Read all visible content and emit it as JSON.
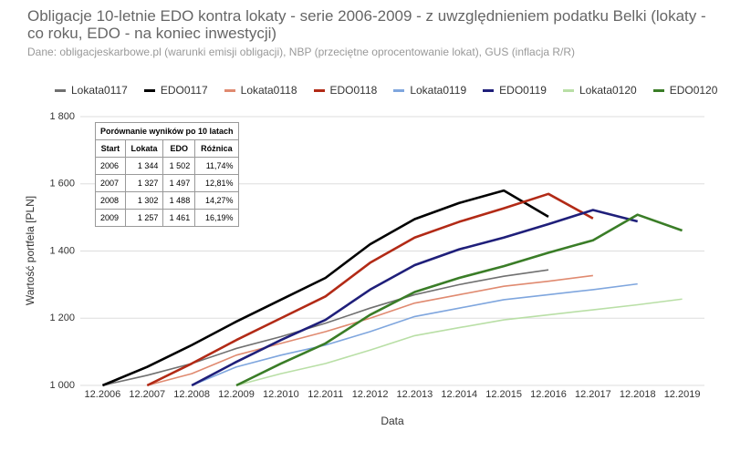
{
  "chart_data": {
    "type": "line",
    "title": "Obligacje 10-letnie EDO kontra lokaty - serie 2006-2009 - z uwzględnieniem podatku Belki (lokaty - co roku, EDO - na koniec inwestycji)",
    "subtitle": "Dane: obligacjeskarbowe.pl (warunki emisji obligacji), NBP (przeciętne oprocentowanie lokat), GUS (inflacja R/R)",
    "x_label": "Data",
    "y_label": "Wartość portfela [PLN]",
    "categories": [
      "12.2006",
      "12.2007",
      "12.2008",
      "12.2009",
      "12.2010",
      "12.2011",
      "12.2012",
      "12.2013",
      "12.2014",
      "12.2015",
      "12.2016",
      "12.2017",
      "12.2018",
      "12.2019"
    ],
    "ylim": [
      1000,
      1800
    ],
    "yticks": [
      {
        "value": 1000,
        "label": "1 000"
      },
      {
        "value": 1200,
        "label": "1 200"
      },
      {
        "value": 1400,
        "label": "1 400"
      },
      {
        "value": 1600,
        "label": "1 600"
      },
      {
        "value": 1800,
        "label": "1 800"
      }
    ],
    "grid": true,
    "series": [
      {
        "name": "Lokata0117",
        "color": "#707070",
        "values": [
          1000,
          1030,
          1065,
          1110,
          1145,
          1185,
          1230,
          1270,
          1300,
          1325,
          1344,
          null,
          null,
          null
        ]
      },
      {
        "name": "EDO0117",
        "color": "#000000",
        "values": [
          1000,
          1055,
          1120,
          1190,
          1255,
          1320,
          1420,
          1495,
          1543,
          1580,
          1502,
          null,
          null,
          null
        ]
      },
      {
        "name": "Lokata0118",
        "color": "#e08a70",
        "values": [
          null,
          1000,
          1035,
          1090,
          1125,
          1160,
          1200,
          1245,
          1270,
          1295,
          1310,
          1327,
          null,
          null
        ]
      },
      {
        "name": "EDO0118",
        "color": "#b22a16",
        "values": [
          null,
          1000,
          1065,
          1135,
          1200,
          1265,
          1365,
          1440,
          1487,
          1527,
          1570,
          1497,
          null,
          null
        ]
      },
      {
        "name": "Lokata0119",
        "color": "#7fa6de",
        "values": [
          null,
          null,
          1000,
          1055,
          1090,
          1120,
          1160,
          1205,
          1230,
          1255,
          1270,
          1285,
          1302,
          null
        ]
      },
      {
        "name": "EDO0119",
        "color": "#1f1f7a",
        "values": [
          null,
          null,
          1000,
          1070,
          1135,
          1195,
          1285,
          1358,
          1405,
          1440,
          1480,
          1522,
          1488,
          null
        ]
      },
      {
        "name": "Lokata0120",
        "color": "#b9dfa6",
        "values": [
          null,
          null,
          null,
          1000,
          1035,
          1065,
          1105,
          1148,
          1172,
          1195,
          1210,
          1225,
          1240,
          1257
        ]
      },
      {
        "name": "EDO0120",
        "color": "#3a7d27",
        "values": [
          null,
          null,
          null,
          1000,
          1065,
          1125,
          1210,
          1278,
          1320,
          1355,
          1395,
          1432,
          1508,
          1461
        ]
      }
    ],
    "table": {
      "title": "Porównanie wyników po 10 latach",
      "header": [
        "Start",
        "Lokata",
        "EDO",
        "Różnica"
      ],
      "rows": [
        [
          "2006",
          "1 344",
          "1 502",
          "11,74%"
        ],
        [
          "2007",
          "1 327",
          "1 497",
          "12,81%"
        ],
        [
          "2008",
          "1 302",
          "1 488",
          "14,27%"
        ],
        [
          "2009",
          "1 257",
          "1 461",
          "16,19%"
        ]
      ]
    }
  }
}
